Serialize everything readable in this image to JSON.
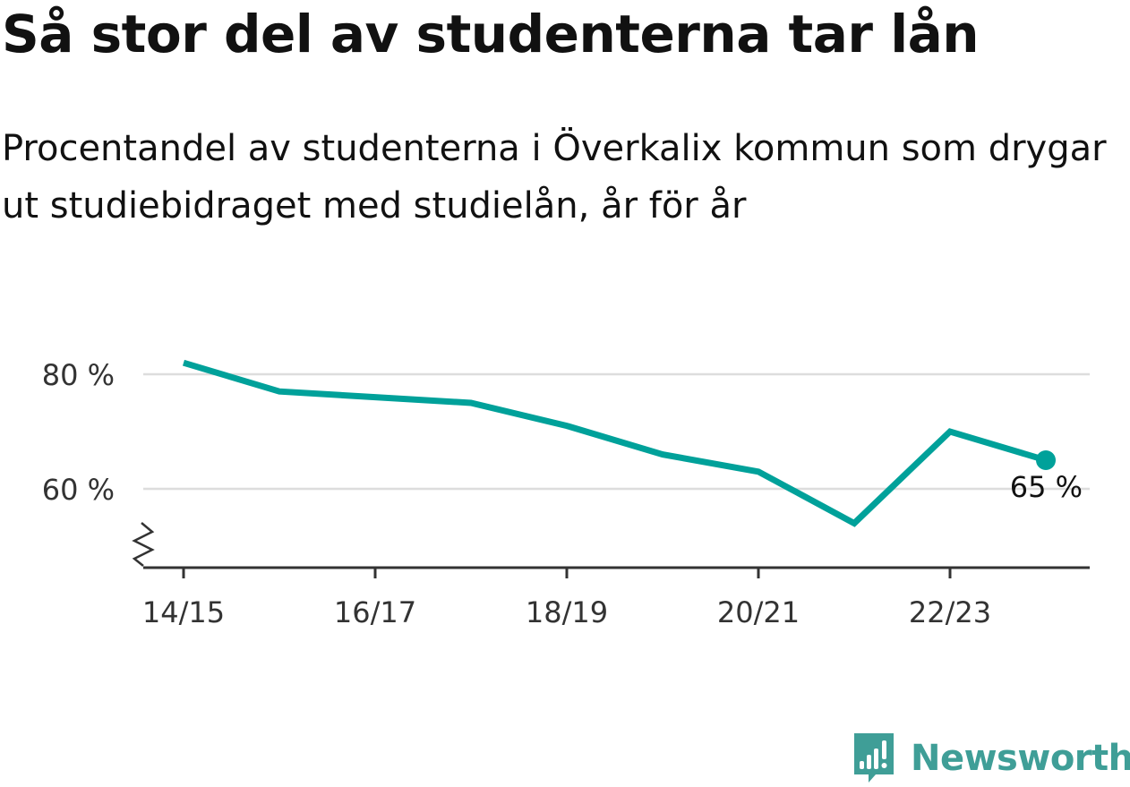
{
  "header": {
    "title": "Så stor del av studenterna tar lån",
    "subtitle": "Procentandel av studenterna i Överkalix kommun som drygar ut studiebidraget med studielån, år för år"
  },
  "chart_data": {
    "type": "line",
    "x": [
      "14/15",
      "15/16",
      "16/17",
      "17/18",
      "18/19",
      "19/20",
      "20/21",
      "21/22",
      "22/23",
      "23/24"
    ],
    "series": [
      {
        "values": [
          82,
          77,
          76,
          75,
          71,
          66,
          63,
          54,
          70,
          65
        ]
      }
    ],
    "x_tick_labels": [
      "14/15",
      "16/17",
      "18/19",
      "20/21",
      "22/23"
    ],
    "y_ticks": [
      60,
      80
    ],
    "y_tick_labels": [
      "60 %",
      "80 %"
    ],
    "ylim": [
      46,
      90
    ],
    "y_axis_broken": true,
    "grid": true,
    "end_label": "65 %",
    "colors": {
      "line": "#00a19a",
      "grid": "#dddddd",
      "axis": "#333333",
      "tick_text": "#333333"
    }
  },
  "brand": {
    "name": "Newsworthy",
    "icon": "bar-chart-speech-bubble-icon",
    "color": "#3f9e97"
  }
}
